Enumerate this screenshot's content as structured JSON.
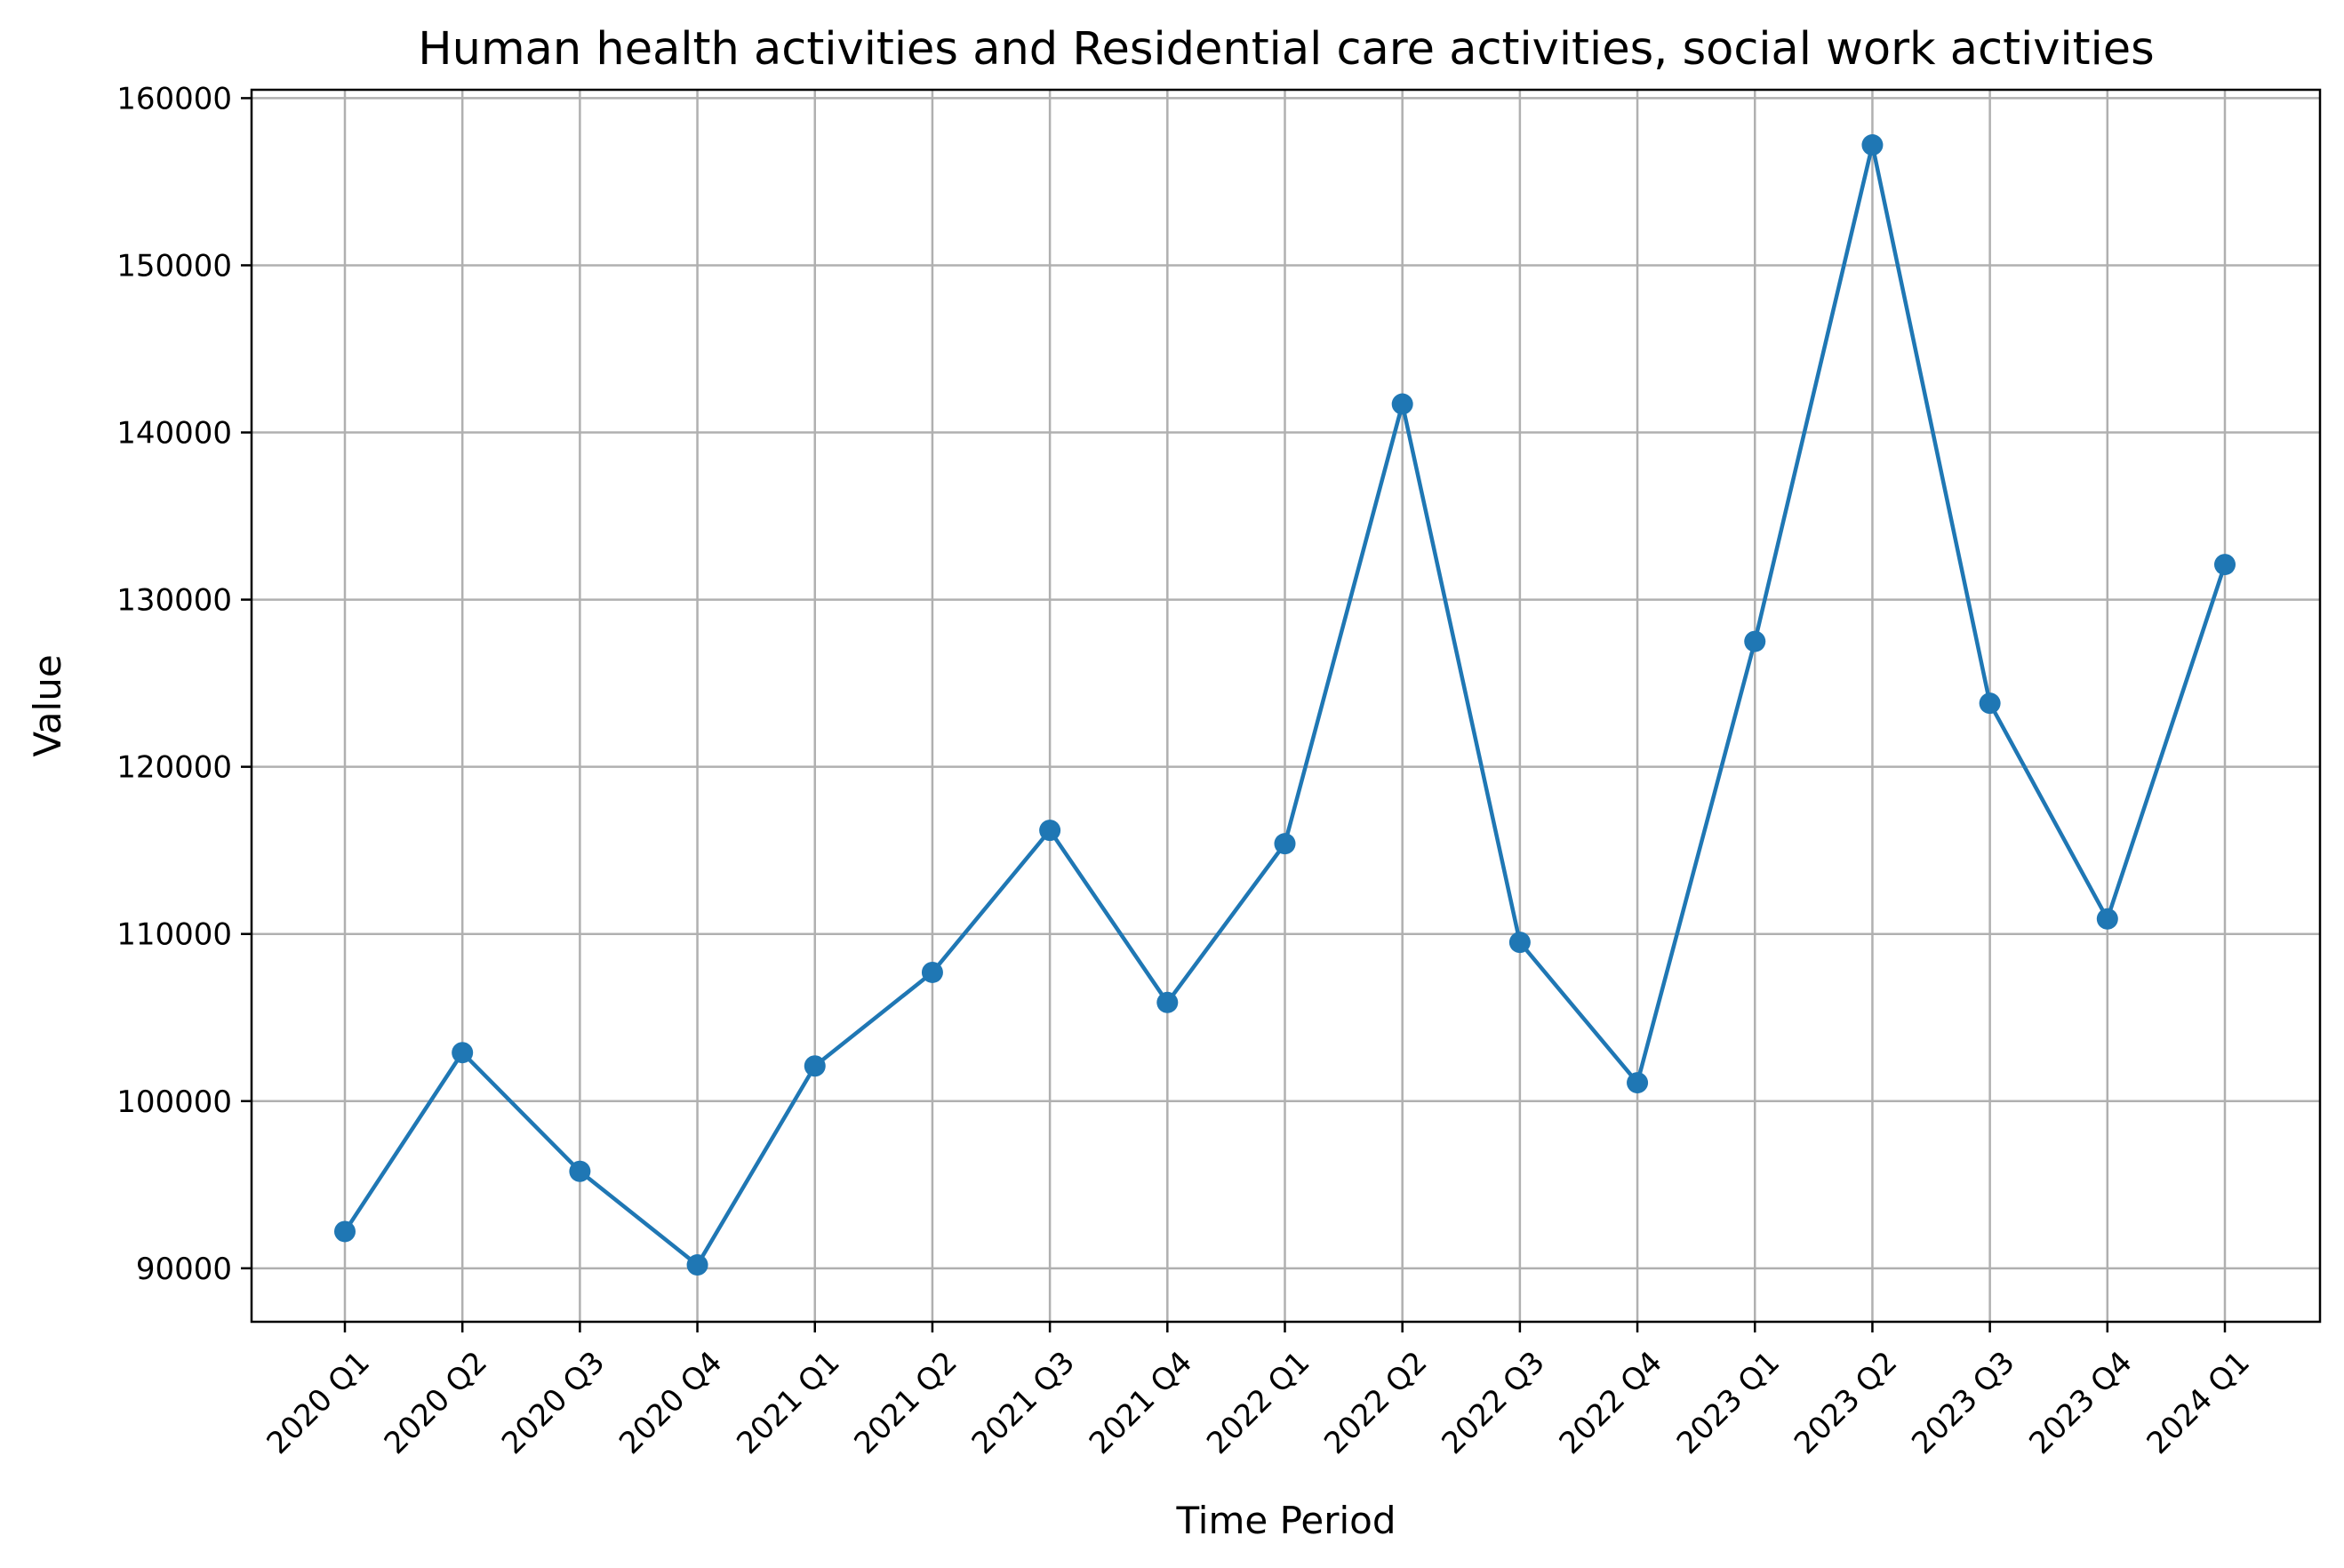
{
  "chart_data": {
    "type": "line",
    "title": "Human health activities and Residential care activities, social work activities",
    "xlabel": "Time Period",
    "ylabel": "Value",
    "categories": [
      "2020 Q1",
      "2020 Q2",
      "2020 Q3",
      "2020 Q4",
      "2021 Q1",
      "2021 Q2",
      "2021 Q3",
      "2021 Q4",
      "2022 Q1",
      "2022 Q2",
      "2022 Q3",
      "2022 Q4",
      "2023 Q1",
      "2023 Q2",
      "2023 Q3",
      "2023 Q4",
      "2024 Q1"
    ],
    "series": [
      {
        "color": "#1f77b4",
        "marker": "circle",
        "values": [
          92200,
          102900,
          95800,
          90200,
          102100,
          107700,
          116200,
          105900,
          115400,
          141700,
          109500,
          101100,
          127500,
          157200,
          123800,
          110900,
          132100
        ]
      }
    ],
    "ylim": [
      86800,
      160500
    ],
    "yticks": [
      90000,
      100000,
      110000,
      120000,
      130000,
      140000,
      150000,
      160000
    ],
    "grid": true,
    "legend": false
  }
}
